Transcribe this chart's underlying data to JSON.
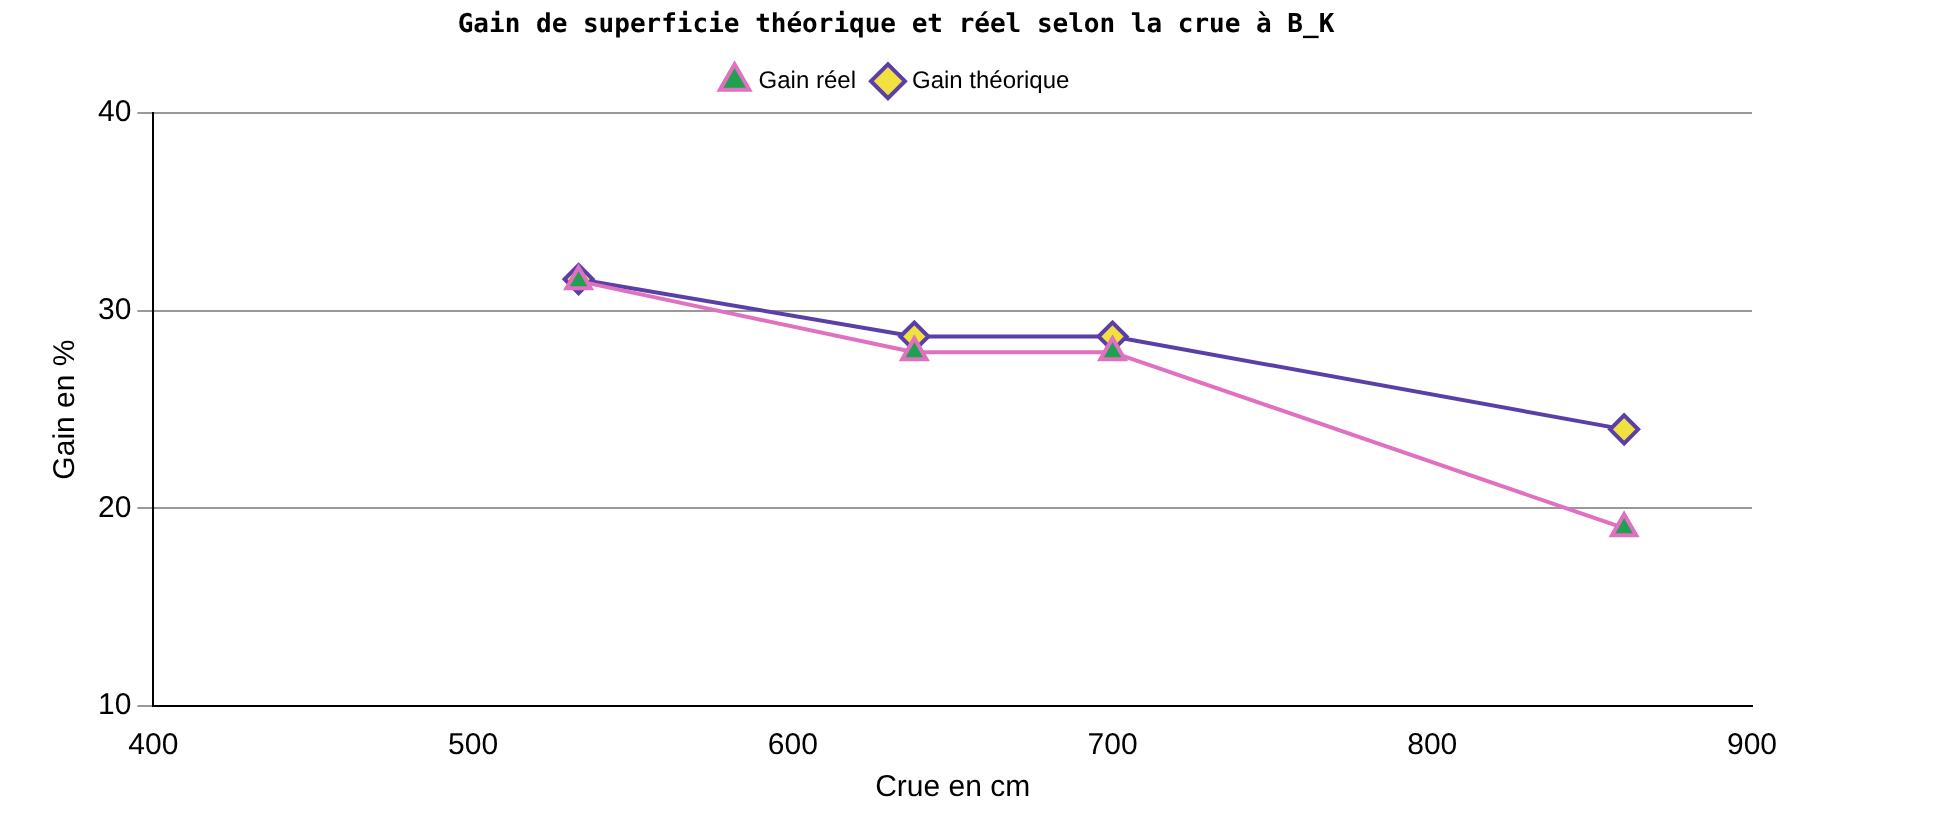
{
  "chart_data": {
    "type": "line",
    "title": "Gain de superficie théorique et réel selon la crue à B_K",
    "xlabel": "Crue en cm",
    "ylabel": "Gain en %",
    "series": [
      {
        "name": "Gain théorique",
        "color": "#5b3fa8",
        "marker": "diamond",
        "colors": [
          "#f0e040",
          "#f0e040",
          "#f0e040",
          "#f0e040"
        ],
        "x": [
          533,
          638,
          700,
          860
        ],
        "values": [
          31.6,
          28.7,
          28.7,
          24.0
        ]
      },
      {
        "name": "Gain réel",
        "color": "#e070c0",
        "marker": "triangle",
        "colors": [
          "#20a050",
          "#20a050",
          "#20a050",
          "#20a050"
        ],
        "x": [
          533,
          638,
          700,
          860
        ],
        "values": [
          31.5,
          27.9,
          27.9,
          19.0
        ]
      }
    ],
    "xlim": [
      400,
      900
    ],
    "xticks": [
      400,
      500,
      600,
      700,
      800,
      900
    ],
    "ylim": [
      10,
      40
    ],
    "yticks": [
      10,
      20,
      30,
      40
    ],
    "grid": "y",
    "legend": "top"
  }
}
